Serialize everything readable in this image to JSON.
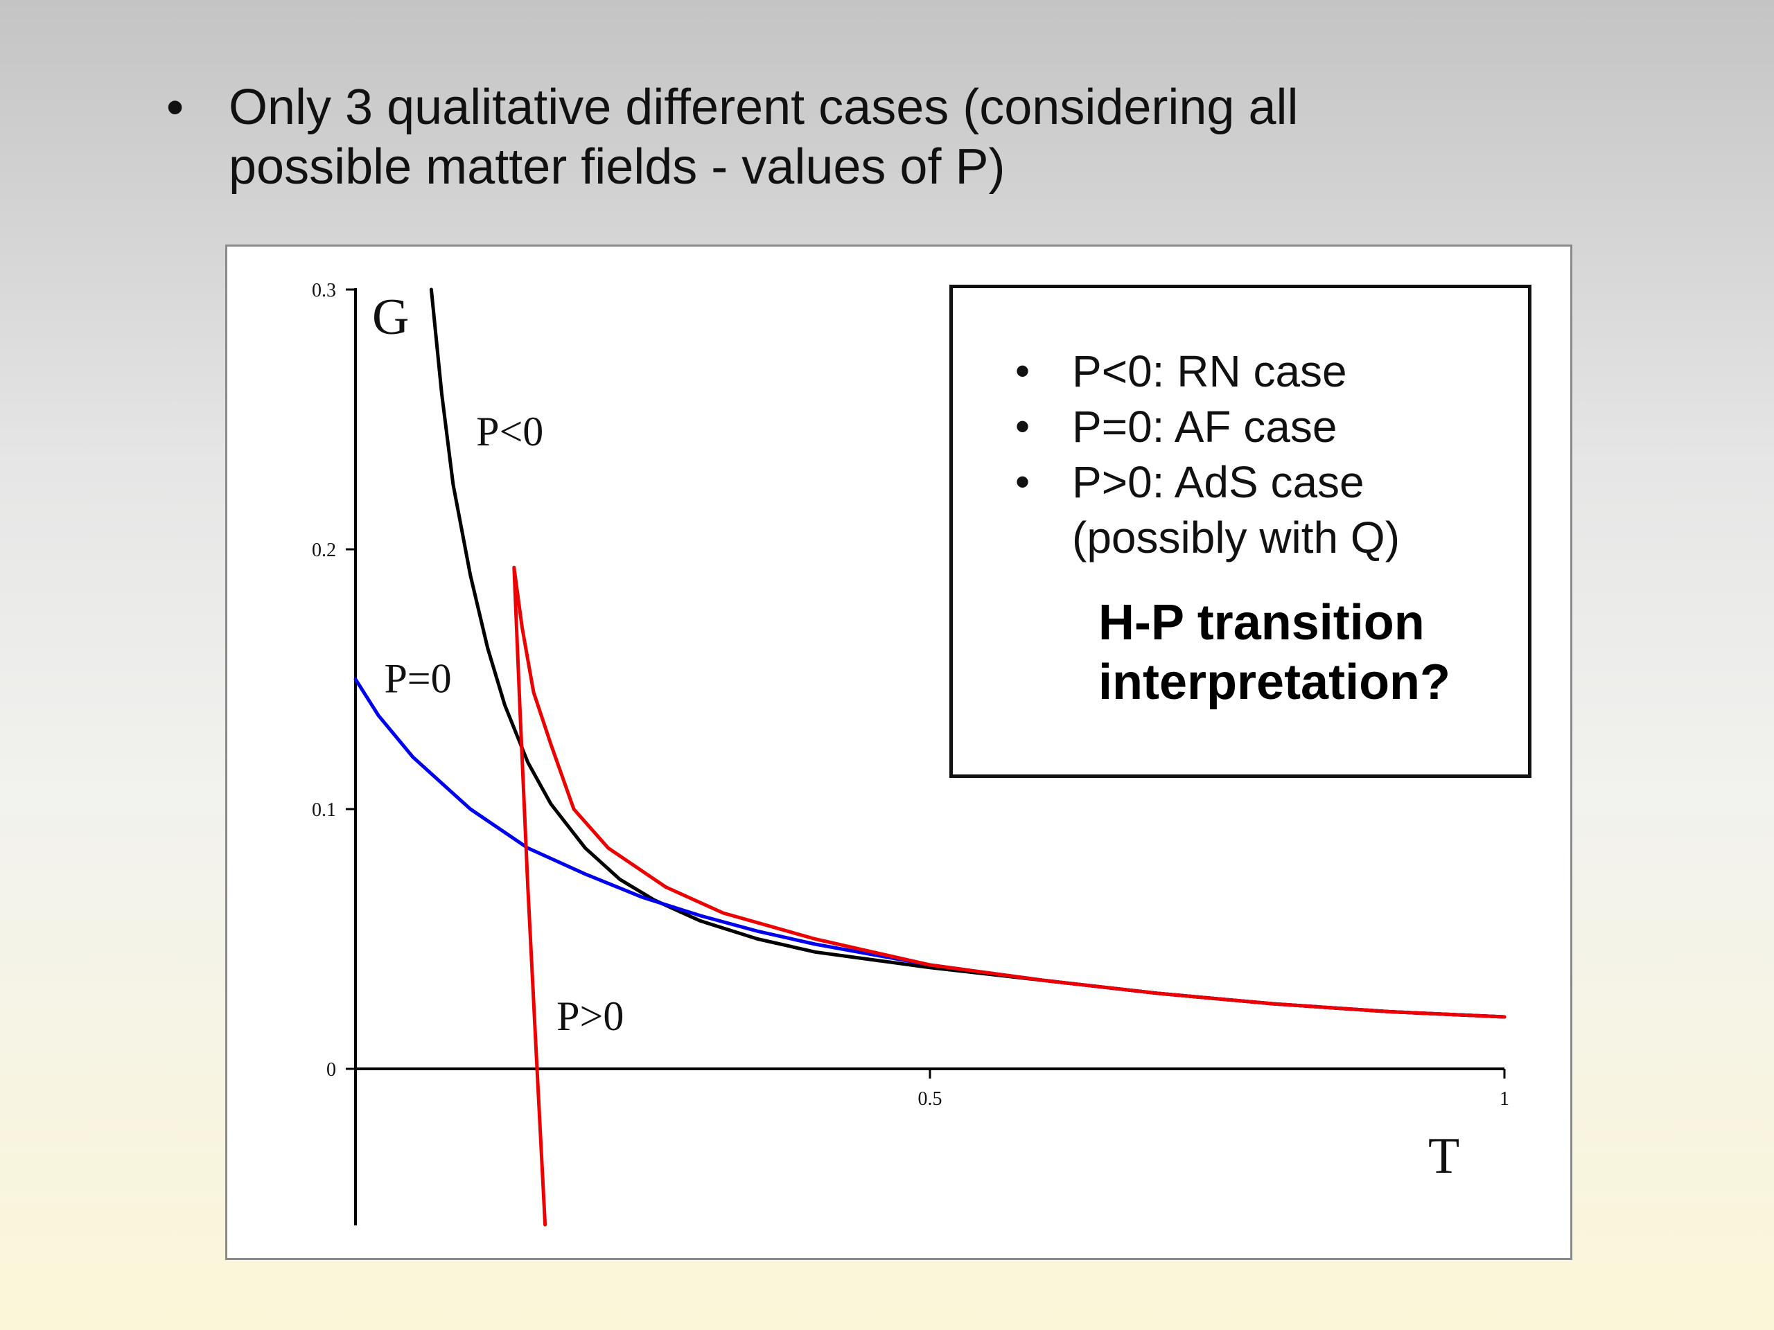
{
  "slide": {
    "bullet": "Only 3 qualitative different cases (considering all\npossible matter fields - values of P)"
  },
  "legend": {
    "items": [
      "P<0: RN case",
      "P=0: AF case",
      "P>0: AdS case"
    ],
    "sub": "(possibly with Q)",
    "question": "H-P transition\ninterpretation?"
  },
  "chart_data": {
    "type": "line",
    "xlabel": "T",
    "ylabel": "G",
    "xlim": [
      0,
      1
    ],
    "ylim": [
      -0.06,
      0.3
    ],
    "x_ticks": [
      {
        "value": 0.5,
        "label": "0.5"
      },
      {
        "value": 1,
        "label": "1"
      }
    ],
    "y_ticks": [
      {
        "value": 0,
        "label": "0"
      },
      {
        "value": 0.1,
        "label": "0.1"
      },
      {
        "value": 0.2,
        "label": "0.2"
      },
      {
        "value": 0.3,
        "label": "0.3"
      }
    ],
    "series": [
      {
        "name": "P<0",
        "color": "#000000",
        "label_at": [
          0.105,
          0.24
        ],
        "points": [
          [
            0.066,
            0.3
          ],
          [
            0.075,
            0.26
          ],
          [
            0.085,
            0.225
          ],
          [
            0.1,
            0.19
          ],
          [
            0.115,
            0.162
          ],
          [
            0.13,
            0.14
          ],
          [
            0.15,
            0.118
          ],
          [
            0.17,
            0.102
          ],
          [
            0.2,
            0.085
          ],
          [
            0.23,
            0.073
          ],
          [
            0.26,
            0.065
          ],
          [
            0.3,
            0.057
          ],
          [
            0.35,
            0.05
          ],
          [
            0.4,
            0.045
          ],
          [
            0.5,
            0.039
          ],
          [
            0.6,
            0.034
          ],
          [
            0.7,
            0.029
          ],
          [
            0.8,
            0.025
          ],
          [
            0.9,
            0.022
          ],
          [
            1.0,
            0.02
          ]
        ]
      },
      {
        "name": "P=0",
        "color": "#0000ee",
        "label_at": [
          0.025,
          0.145
        ],
        "points": [
          [
            0.0,
            0.15
          ],
          [
            0.02,
            0.136
          ],
          [
            0.05,
            0.12
          ],
          [
            0.1,
            0.1
          ],
          [
            0.15,
            0.085
          ],
          [
            0.2,
            0.075
          ],
          [
            0.25,
            0.066
          ],
          [
            0.3,
            0.059
          ],
          [
            0.35,
            0.053
          ],
          [
            0.4,
            0.048
          ],
          [
            0.5,
            0.04
          ],
          [
            0.6,
            0.034
          ],
          [
            0.7,
            0.029
          ],
          [
            0.8,
            0.025
          ],
          [
            0.9,
            0.022
          ],
          [
            1.0,
            0.02
          ]
        ]
      },
      {
        "name": "P>0",
        "color": "#ee0000",
        "label_at": [
          0.175,
          0.015
        ],
        "points": [
          [
            0.165,
            -0.06
          ],
          [
            0.158,
            0.0
          ],
          [
            0.15,
            0.07
          ],
          [
            0.143,
            0.14
          ],
          [
            0.138,
            0.193
          ],
          [
            0.145,
            0.17
          ],
          [
            0.155,
            0.145
          ],
          [
            0.17,
            0.125
          ],
          [
            0.19,
            0.1
          ],
          [
            0.22,
            0.085
          ],
          [
            0.27,
            0.07
          ],
          [
            0.32,
            0.06
          ],
          [
            0.4,
            0.05
          ],
          [
            0.5,
            0.04
          ],
          [
            0.6,
            0.034
          ],
          [
            0.7,
            0.029
          ],
          [
            0.8,
            0.025
          ],
          [
            0.9,
            0.022
          ],
          [
            1.0,
            0.02
          ]
        ]
      }
    ]
  }
}
